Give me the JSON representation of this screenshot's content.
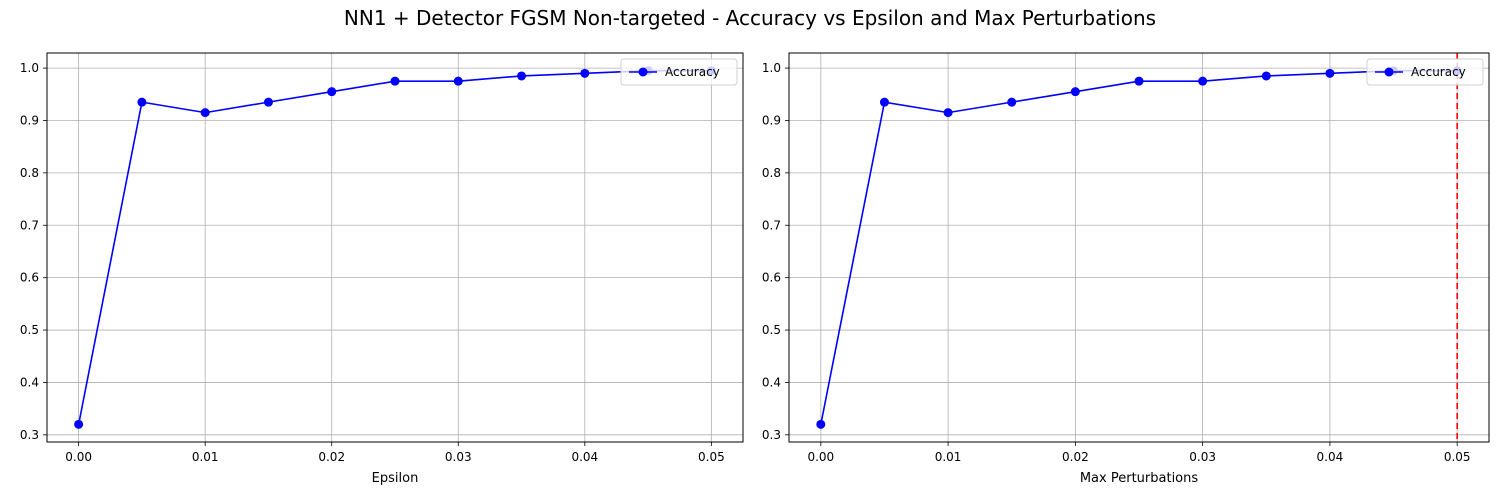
{
  "figure": {
    "title": "NN1 + Detector FGSM Non-targeted - Accuracy vs Epsilon and Max Perturbations"
  },
  "chart_data": [
    {
      "type": "line",
      "xlabel": "Epsilon",
      "ylabel": "",
      "x": [
        0.0,
        0.005,
        0.01,
        0.015,
        0.02,
        0.025,
        0.03,
        0.035,
        0.04,
        0.045,
        0.05
      ],
      "series": [
        {
          "name": "Accuracy",
          "color": "#0000ff",
          "marker": "circle",
          "values": [
            0.32,
            0.935,
            0.915,
            0.935,
            0.955,
            0.975,
            0.975,
            0.985,
            0.99,
            0.995,
            0.995
          ]
        }
      ],
      "xticks": [
        "0.00",
        "0.01",
        "0.02",
        "0.03",
        "0.04",
        "0.05"
      ],
      "xtick_values": [
        0.0,
        0.01,
        0.02,
        0.03,
        0.04,
        0.05
      ],
      "yticks": [
        "0.3",
        "0.4",
        "0.5",
        "0.6",
        "0.7",
        "0.8",
        "0.9",
        "1.0"
      ],
      "ytick_values": [
        0.3,
        0.4,
        0.5,
        0.6,
        0.7,
        0.8,
        0.9,
        1.0
      ],
      "xlim": [
        -0.0025,
        0.0525
      ],
      "ylim": [
        0.2863,
        1.0288
      ],
      "grid": true,
      "legend": "top-right"
    },
    {
      "type": "line",
      "xlabel": "Max Perturbations",
      "ylabel": "",
      "x": [
        0.0,
        0.005,
        0.01,
        0.015,
        0.02,
        0.025,
        0.03,
        0.035,
        0.04,
        0.045,
        0.05
      ],
      "series": [
        {
          "name": "Accuracy",
          "color": "#0000ff",
          "marker": "circle",
          "values": [
            0.32,
            0.935,
            0.915,
            0.935,
            0.955,
            0.975,
            0.975,
            0.985,
            0.99,
            0.995,
            0.995
          ]
        }
      ],
      "vline": {
        "x": 0.05,
        "color": "#ff0000",
        "style": "dashed"
      },
      "xticks": [
        "0.00",
        "0.01",
        "0.02",
        "0.03",
        "0.04",
        "0.05"
      ],
      "xtick_values": [
        0.0,
        0.01,
        0.02,
        0.03,
        0.04,
        0.05
      ],
      "yticks": [
        "0.3",
        "0.4",
        "0.5",
        "0.6",
        "0.7",
        "0.8",
        "0.9",
        "1.0"
      ],
      "ytick_values": [
        0.3,
        0.4,
        0.5,
        0.6,
        0.7,
        0.8,
        0.9,
        1.0
      ],
      "xlim": [
        -0.0025,
        0.0525
      ],
      "ylim": [
        0.2863,
        1.0288
      ],
      "grid": true,
      "legend": "top-right"
    }
  ]
}
